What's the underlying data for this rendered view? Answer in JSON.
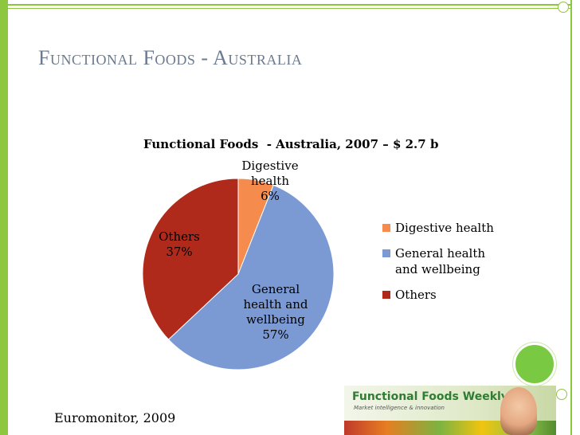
{
  "slide": {
    "title": "Functional Foods - Australia",
    "source": "Euromonitor, 2009",
    "accent_color": "#8dc63f"
  },
  "logo": {
    "title": "Functional Foods Weekly",
    "subtitle": "Market intelligence & innovation"
  },
  "chart_data": {
    "type": "pie",
    "title": "Functional Foods  - Australia, 2007 – $ 2.7 b",
    "legend_position": "right",
    "slices": [
      {
        "name": "Digestive health",
        "value": 6,
        "color": "#f58b4c",
        "label_lines": [
          "Digestive",
          "health",
          "6%"
        ]
      },
      {
        "name": "General health and wellbeing",
        "value": 57,
        "color": "#7b9ad4",
        "label_lines": [
          "General",
          "health and",
          "wellbeing",
          "57%"
        ]
      },
      {
        "name": "Others",
        "value": 37,
        "color": "#b02a1c",
        "label_lines": [
          "Others",
          "37%"
        ]
      }
    ],
    "legend": [
      {
        "lines": [
          "Digestive health"
        ],
        "color": "#f58b4c"
      },
      {
        "lines": [
          "General health",
          "and wellbeing"
        ],
        "color": "#7b9ad4"
      },
      {
        "lines": [
          "Others"
        ],
        "color": "#b02a1c"
      }
    ]
  }
}
